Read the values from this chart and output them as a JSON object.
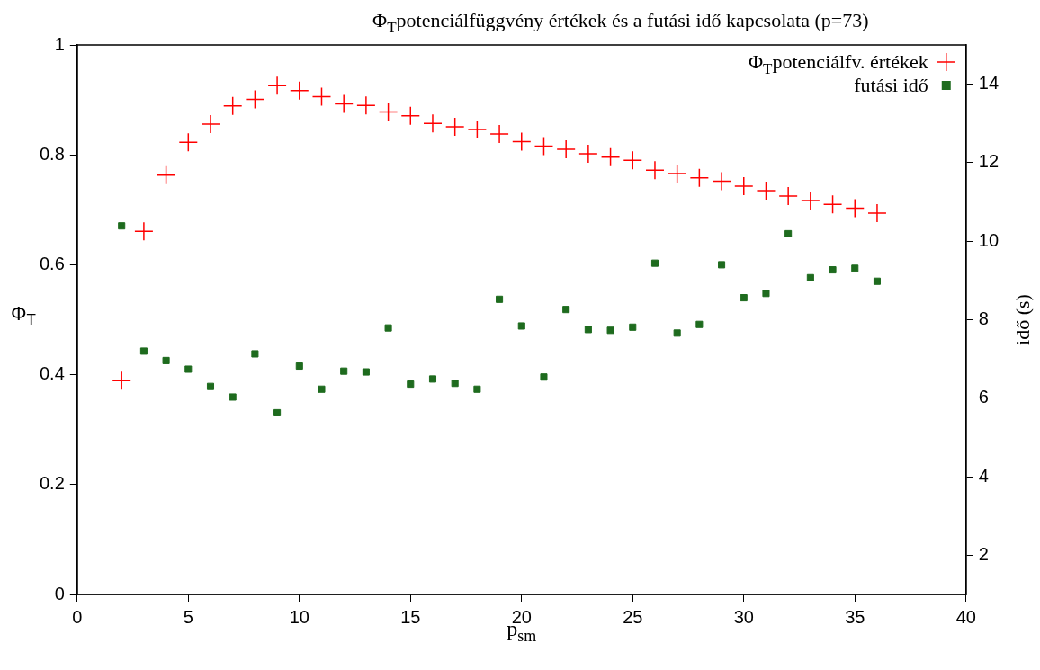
{
  "chart_data": {
    "type": "scatter",
    "title": "Φ$_{T}$potenciálfüggvény értékek és a futási idő kapcsolata (p=73)",
    "xlabel": "p$_{sm}$",
    "ylabel": "Φ$_{T}$",
    "y2label": "idő (s)",
    "x": [
      2,
      3,
      4,
      5,
      6,
      7,
      8,
      9,
      10,
      11,
      12,
      13,
      14,
      15,
      16,
      17,
      18,
      19,
      20,
      21,
      22,
      23,
      24,
      25,
      26,
      27,
      28,
      29,
      30,
      31,
      32,
      33,
      34,
      35,
      36
    ],
    "series": [
      {
        "name": "Φ$_{T}$potenciálfv. értékek",
        "color": "#ff0000",
        "marker": "cross",
        "values": [
          0.389,
          0.661,
          0.763,
          0.823,
          0.856,
          0.889,
          0.901,
          0.926,
          0.917,
          0.906,
          0.893,
          0.89,
          0.878,
          0.871,
          0.857,
          0.851,
          0.846,
          0.838,
          0.824,
          0.816,
          0.81,
          0.802,
          0.796,
          0.79,
          0.772,
          0.766,
          0.758,
          0.752,
          0.743,
          0.735,
          0.725,
          0.717,
          0.71,
          0.703,
          0.694
        ]
      },
      {
        "name": "futási idő",
        "color": "#1e6b1e",
        "marker": "square",
        "axis": "y2",
        "values": [
          10.39,
          7.2,
          6.96,
          6.74,
          6.3,
          6.03,
          7.13,
          5.63,
          6.82,
          6.23,
          6.69,
          6.67,
          7.79,
          6.36,
          6.49,
          6.38,
          6.23,
          8.52,
          7.84,
          6.54,
          8.26,
          7.75,
          7.73,
          7.81,
          9.44,
          7.66,
          7.88,
          9.4,
          8.56,
          8.67,
          10.19,
          9.07,
          9.27,
          9.31,
          8.98
        ]
      }
    ],
    "xlim": [
      0,
      40
    ],
    "xticks": [
      0,
      5,
      10,
      15,
      20,
      25,
      30,
      35,
      40
    ],
    "ylim": [
      0,
      1
    ],
    "yticks": [
      0,
      0.2,
      0.4,
      0.6,
      0.8,
      1
    ],
    "y2lim": [
      1,
      15
    ],
    "y2ticks": [
      2,
      4,
      6,
      8,
      10,
      12,
      14
    ],
    "legend": "top right",
    "grid": false
  }
}
